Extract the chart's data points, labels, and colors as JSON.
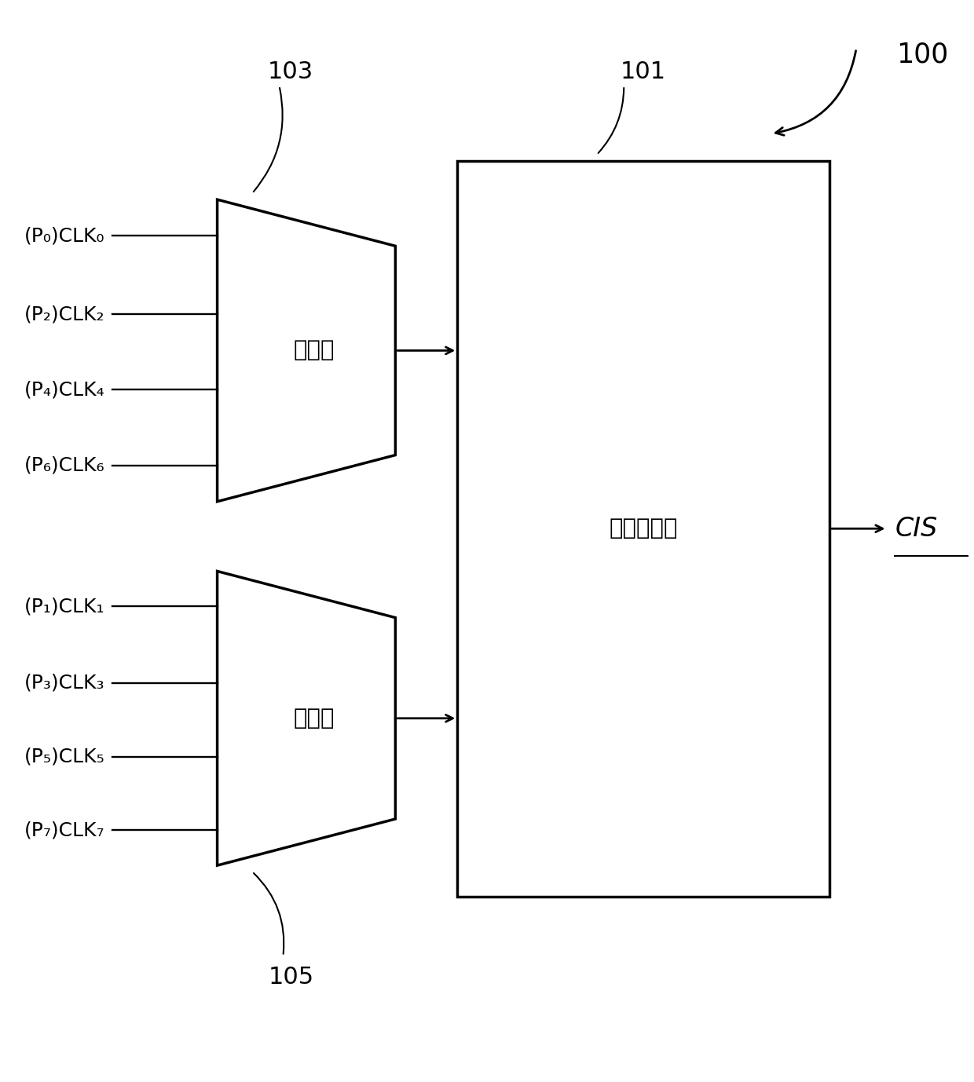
{
  "bg_color": "#ffffff",
  "fig_width": 12.4,
  "fig_height": 13.78,
  "label_100": "100",
  "label_101": "101",
  "label_103": "103",
  "label_105": "105",
  "mux1_label": "多工器",
  "mux2_label": "多工器",
  "interpolator_label": "相位内插器",
  "output_label": "CIS",
  "mux1_inputs": [
    "(P₀)CLK₀",
    "(P₂)CLK₂",
    "(P₄)CLK₄",
    "(P₆)CLK₆"
  ],
  "mux2_inputs": [
    "(P₁)CLK₁",
    "(P₃)CLK₃",
    "(P₅)CLK₅",
    "(P₇)CLK₇"
  ],
  "line_color": "#000000",
  "line_width": 2.0,
  "text_color": "#000000",
  "font_size_chinese": 21,
  "font_size_number": 22,
  "font_size_output": 24,
  "font_size_input": 18
}
